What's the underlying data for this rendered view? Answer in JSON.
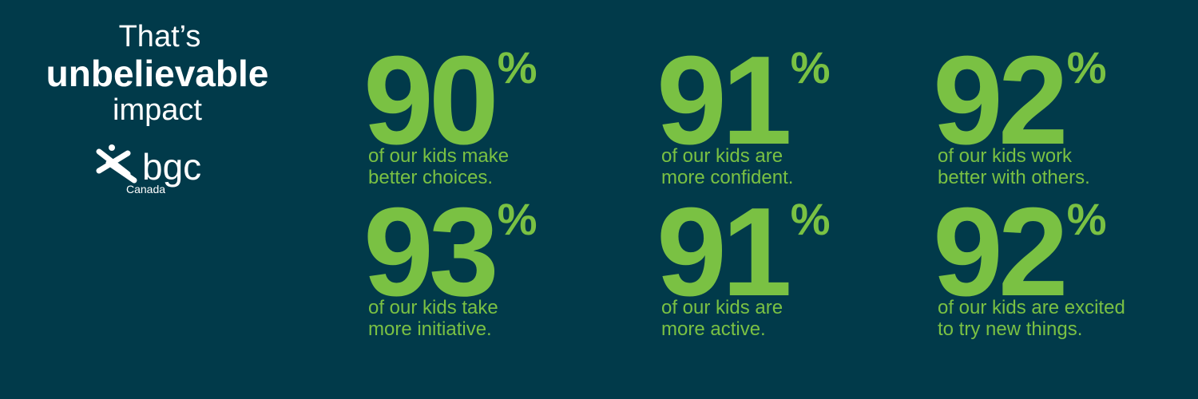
{
  "header": {
    "lines": [
      "That’s",
      "unbelievable",
      "impact"
    ]
  },
  "logo": {
    "name": "bgc",
    "subtitle": "Canada"
  },
  "stats": [
    {
      "value": 90,
      "unit": "%",
      "lines": [
        "of our kids make",
        "better choices."
      ]
    },
    {
      "value": 91,
      "unit": "%",
      "lines": [
        "of our kids are",
        "more confident."
      ]
    },
    {
      "value": 92,
      "unit": "%",
      "lines": [
        "of our kids work",
        "better with others."
      ]
    },
    {
      "value": 93,
      "unit": "%",
      "lines": [
        "of our kids take",
        "more initiative."
      ]
    },
    {
      "value": 91,
      "unit": "%",
      "lines": [
        "of our kids are",
        "more active."
      ]
    },
    {
      "value": 92,
      "unit": "%",
      "lines": [
        "of our kids are excited",
        "to try new things."
      ]
    }
  ]
}
